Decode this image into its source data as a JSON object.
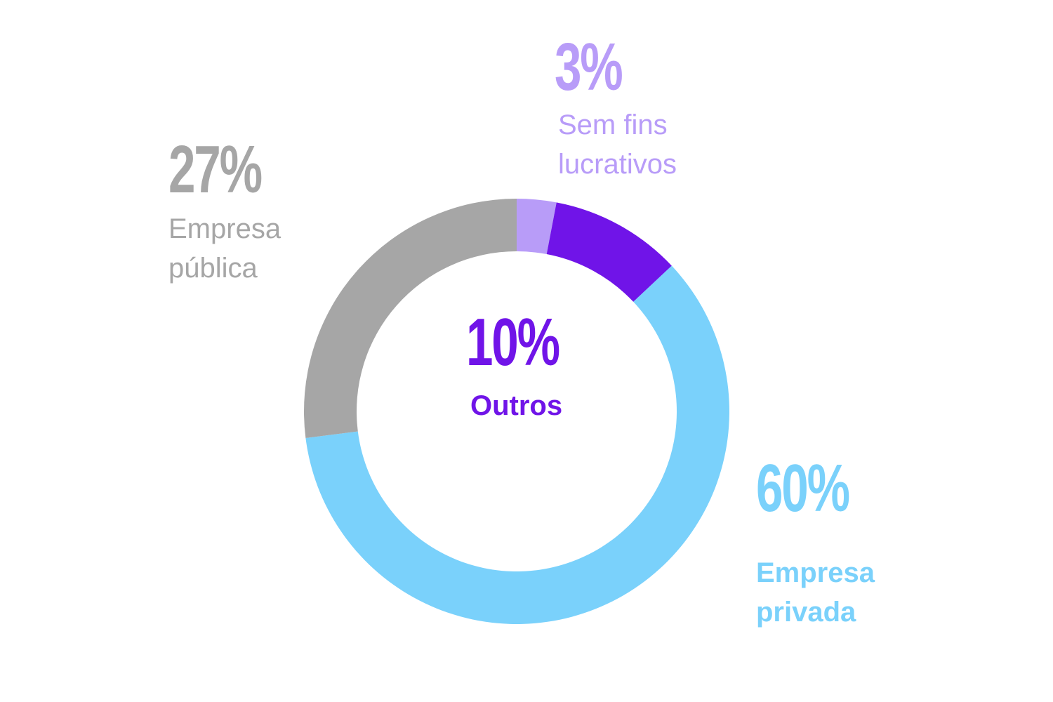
{
  "chart_data": {
    "type": "donut",
    "categories": [
      "Sem fins lucrativos",
      "Outros",
      "Empresa privada",
      "Empresa pública"
    ],
    "values": [
      3,
      10,
      60,
      27
    ],
    "value_labels": [
      "3%",
      "10%",
      "60%",
      "27%"
    ],
    "colors": [
      "#b89cf8",
      "#7014e8",
      "#7ad1fb",
      "#a6a6a6"
    ]
  }
}
